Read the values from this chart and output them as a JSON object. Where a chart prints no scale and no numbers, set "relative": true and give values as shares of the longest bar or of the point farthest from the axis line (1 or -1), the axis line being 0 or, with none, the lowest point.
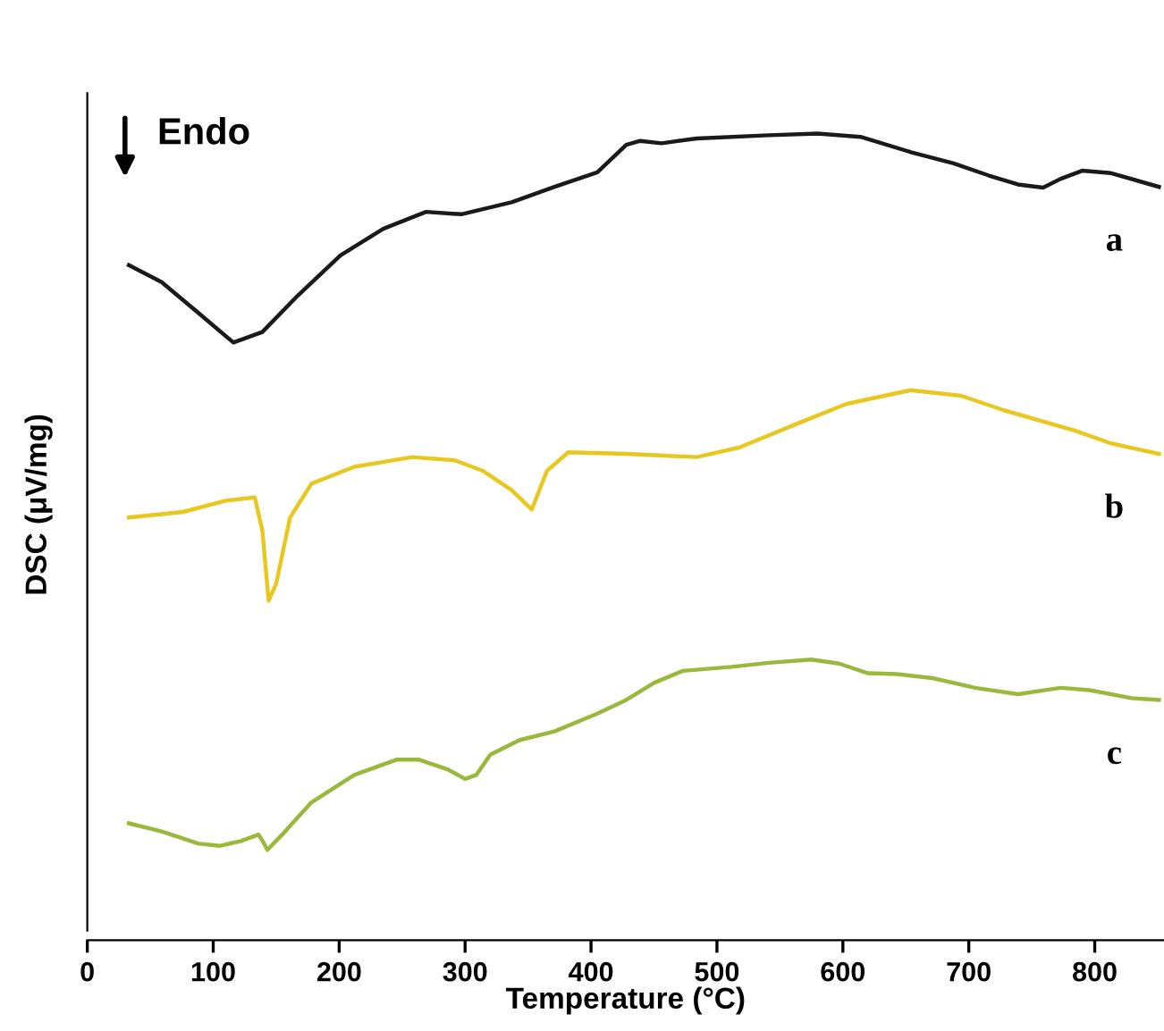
{
  "chart_data": {
    "type": "line",
    "relative": true,
    "xlabel": "Temperature (°C)",
    "ylabel": "DSC (μV/mg)",
    "annotations": [
      "Endo"
    ],
    "xlim": [
      0,
      855
    ],
    "xticks": [
      0,
      100,
      200,
      300,
      400,
      500,
      600,
      700,
      800
    ],
    "grid": false,
    "legend": false,
    "marker": "none",
    "line_style": "solid",
    "series": [
      {
        "name": "a",
        "color": "#1a1a1a",
        "x": [
          33,
          59,
          88,
          116,
          139,
          167,
          201,
          235,
          269,
          297,
          337,
          371,
          405,
          428,
          439,
          456,
          484,
          541,
          580,
          614,
          654,
          688,
          716,
          739,
          759,
          773,
          790,
          813,
          851
        ],
        "values": [
          0.837,
          0.816,
          0.778,
          0.741,
          0.754,
          0.799,
          0.849,
          0.882,
          0.903,
          0.9,
          0.915,
          0.934,
          0.952,
          0.986,
          0.991,
          0.988,
          0.994,
          0.998,
          1.0,
          0.996,
          0.977,
          0.963,
          0.948,
          0.937,
          0.933,
          0.944,
          0.954,
          0.951,
          0.934
        ]
      },
      {
        "name": "b",
        "color": "#e8c820",
        "x": [
          33,
          76,
          110,
          133,
          139,
          144,
          150,
          161,
          178,
          212,
          258,
          292,
          314,
          337,
          353,
          365,
          382,
          428,
          484,
          518,
          563,
          603,
          654,
          694,
          728,
          784,
          813,
          851
        ],
        "values": [
          0.524,
          0.531,
          0.545,
          0.549,
          0.508,
          0.421,
          0.442,
          0.524,
          0.566,
          0.587,
          0.599,
          0.595,
          0.582,
          0.558,
          0.534,
          0.582,
          0.605,
          0.603,
          0.599,
          0.611,
          0.64,
          0.665,
          0.682,
          0.675,
          0.657,
          0.632,
          0.616,
          0.603
        ]
      },
      {
        "name": "c",
        "color": "#9ab83c",
        "x": [
          33,
          59,
          88,
          105,
          122,
          136,
          140,
          143,
          156,
          178,
          212,
          246,
          263,
          286,
          300,
          309,
          320,
          343,
          371,
          405,
          428,
          450,
          473,
          512,
          541,
          575,
          597,
          620,
          643,
          671,
          705,
          739,
          773,
          796,
          830,
          851
        ],
        "values": [
          0.145,
          0.135,
          0.12,
          0.117,
          0.123,
          0.131,
          0.121,
          0.112,
          0.133,
          0.171,
          0.205,
          0.224,
          0.224,
          0.212,
          0.2,
          0.205,
          0.23,
          0.248,
          0.259,
          0.281,
          0.298,
          0.319,
          0.334,
          0.339,
          0.344,
          0.348,
          0.343,
          0.331,
          0.33,
          0.325,
          0.313,
          0.305,
          0.313,
          0.31,
          0.3,
          0.298
        ]
      }
    ]
  }
}
